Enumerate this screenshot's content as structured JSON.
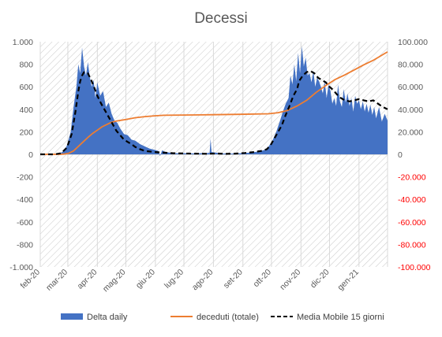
{
  "chart_data": {
    "type": "area",
    "title": "Decessi",
    "y_left": {
      "range": [
        -1000,
        1000
      ],
      "ticks": [
        "-1.000",
        "-800",
        "-600",
        "-400",
        "-200",
        "0",
        "200",
        "400",
        "600",
        "800",
        "1.000"
      ]
    },
    "y_right": {
      "range": [
        -100000,
        100000
      ],
      "ticks": [
        "-100.000",
        "-80.000",
        "-60.000",
        "-40.000",
        "-20.000",
        "0",
        "20.000",
        "40.000",
        "60.000",
        "80.000",
        "100.000"
      ],
      "color": "#ff0000"
    },
    "x_ticks": [
      "feb-20",
      "mar-20",
      "apr-20",
      "mag-20",
      "giu-20",
      "lug-20",
      "ago-20",
      "set-20",
      "ott-20",
      "nov-20",
      "dic-20",
      "gen-21"
    ],
    "x_range_days": [
      0,
      365
    ],
    "x_tick_days": [
      0,
      29,
      60,
      90,
      121,
      151,
      182,
      213,
      243,
      274,
      304,
      335
    ],
    "gridlines": "vertical",
    "legend_position": "bottom",
    "series": [
      {
        "name": "Delta daily",
        "kind": "area",
        "axis": "left",
        "color": "#4472c4",
        "points": [
          [
            0,
            0
          ],
          [
            10,
            0
          ],
          [
            20,
            5
          ],
          [
            25,
            30
          ],
          [
            28,
            80
          ],
          [
            32,
            200
          ],
          [
            35,
            420
          ],
          [
            38,
            600
          ],
          [
            40,
            800
          ],
          [
            42,
            720
          ],
          [
            44,
            950
          ],
          [
            46,
            780
          ],
          [
            48,
            700
          ],
          [
            50,
            820
          ],
          [
            52,
            690
          ],
          [
            54,
            600
          ],
          [
            56,
            660
          ],
          [
            58,
            500
          ],
          [
            60,
            640
          ],
          [
            63,
            520
          ],
          [
            66,
            560
          ],
          [
            69,
            420
          ],
          [
            72,
            460
          ],
          [
            75,
            360
          ],
          [
            78,
            300
          ],
          [
            81,
            280
          ],
          [
            84,
            230
          ],
          [
            88,
            180
          ],
          [
            92,
            170
          ],
          [
            96,
            130
          ],
          [
            100,
            120
          ],
          [
            105,
            90
          ],
          [
            110,
            70
          ],
          [
            115,
            50
          ],
          [
            120,
            40
          ],
          [
            124,
            30
          ],
          [
            126,
            -15
          ],
          [
            128,
            35
          ],
          [
            132,
            20
          ],
          [
            136,
            15
          ],
          [
            140,
            10
          ],
          [
            150,
            10
          ],
          [
            160,
            8
          ],
          [
            170,
            10
          ],
          [
            178,
            12
          ],
          [
            179,
            140
          ],
          [
            180,
            20
          ],
          [
            190,
            8
          ],
          [
            200,
            6
          ],
          [
            210,
            10
          ],
          [
            220,
            15
          ],
          [
            230,
            25
          ],
          [
            236,
            40
          ],
          [
            240,
            70
          ],
          [
            244,
            120
          ],
          [
            248,
            200
          ],
          [
            252,
            300
          ],
          [
            255,
            380
          ],
          [
            258,
            450
          ],
          [
            261,
            500
          ],
          [
            263,
            700
          ],
          [
            265,
            620
          ],
          [
            267,
            800
          ],
          [
            269,
            650
          ],
          [
            271,
            900
          ],
          [
            273,
            720
          ],
          [
            275,
            960
          ],
          [
            277,
            780
          ],
          [
            279,
            860
          ],
          [
            281,
            700
          ],
          [
            283,
            720
          ],
          [
            285,
            640
          ],
          [
            287,
            740
          ],
          [
            289,
            600
          ],
          [
            291,
            680
          ],
          [
            293,
            650
          ],
          [
            295,
            600
          ],
          [
            297,
            540
          ],
          [
            299,
            650
          ],
          [
            301,
            500
          ],
          [
            303,
            620
          ],
          [
            305,
            560
          ],
          [
            307,
            450
          ],
          [
            309,
            500
          ],
          [
            311,
            430
          ],
          [
            313,
            620
          ],
          [
            315,
            470
          ],
          [
            317,
            420
          ],
          [
            319,
            580
          ],
          [
            321,
            460
          ],
          [
            323,
            540
          ],
          [
            325,
            430
          ],
          [
            327,
            500
          ],
          [
            329,
            380
          ],
          [
            331,
            520
          ],
          [
            333,
            450
          ],
          [
            335,
            480
          ],
          [
            337,
            400
          ],
          [
            339,
            470
          ],
          [
            341,
            380
          ],
          [
            343,
            450
          ],
          [
            345,
            370
          ],
          [
            347,
            440
          ],
          [
            349,
            350
          ],
          [
            351,
            420
          ],
          [
            353,
            320
          ],
          [
            356,
            420
          ],
          [
            359,
            290
          ],
          [
            362,
            360
          ],
          [
            365,
            300
          ]
        ]
      },
      {
        "name": "deceduti (totale)",
        "kind": "line",
        "axis": "right",
        "color": "#ed7d31",
        "points": [
          [
            0,
            0
          ],
          [
            20,
            0
          ],
          [
            25,
            200
          ],
          [
            30,
            1000
          ],
          [
            35,
            3000
          ],
          [
            40,
            7000
          ],
          [
            45,
            11000
          ],
          [
            50,
            15000
          ],
          [
            55,
            18500
          ],
          [
            60,
            21500
          ],
          [
            65,
            24500
          ],
          [
            70,
            26500
          ],
          [
            75,
            28500
          ],
          [
            80,
            29500
          ],
          [
            90,
            31000
          ],
          [
            100,
            32500
          ],
          [
            110,
            33500
          ],
          [
            120,
            34200
          ],
          [
            130,
            34700
          ],
          [
            150,
            34900
          ],
          [
            180,
            35200
          ],
          [
            210,
            35500
          ],
          [
            240,
            36000
          ],
          [
            250,
            37000
          ],
          [
            260,
            39000
          ],
          [
            270,
            43000
          ],
          [
            280,
            48000
          ],
          [
            290,
            55000
          ],
          [
            300,
            61000
          ],
          [
            310,
            66500
          ],
          [
            320,
            70500
          ],
          [
            330,
            75000
          ],
          [
            340,
            79500
          ],
          [
            350,
            83500
          ],
          [
            360,
            88500
          ],
          [
            365,
            91000
          ]
        ]
      },
      {
        "name": "Media Mobile 15 giorni",
        "kind": "dashed-line",
        "axis": "left",
        "color": "#000000",
        "points": [
          [
            0,
            0
          ],
          [
            15,
            0
          ],
          [
            22,
            10
          ],
          [
            28,
            60
          ],
          [
            33,
            180
          ],
          [
            37,
            380
          ],
          [
            40,
            560
          ],
          [
            42,
            650
          ],
          [
            44,
            700
          ],
          [
            46,
            730
          ],
          [
            50,
            720
          ],
          [
            53,
            670
          ],
          [
            56,
            610
          ],
          [
            60,
            520
          ],
          [
            64,
            450
          ],
          [
            68,
            390
          ],
          [
            72,
            330
          ],
          [
            76,
            270
          ],
          [
            80,
            210
          ],
          [
            84,
            170
          ],
          [
            88,
            130
          ],
          [
            92,
            110
          ],
          [
            96,
            90
          ],
          [
            100,
            65
          ],
          [
            105,
            45
          ],
          [
            110,
            30
          ],
          [
            120,
            20
          ],
          [
            140,
            10
          ],
          [
            160,
            6
          ],
          [
            175,
            5
          ],
          [
            185,
            8
          ],
          [
            195,
            4
          ],
          [
            205,
            6
          ],
          [
            215,
            12
          ],
          [
            225,
            20
          ],
          [
            232,
            30
          ],
          [
            238,
            45
          ],
          [
            242,
            80
          ],
          [
            246,
            140
          ],
          [
            250,
            200
          ],
          [
            254,
            260
          ],
          [
            258,
            350
          ],
          [
            262,
            430
          ],
          [
            266,
            520
          ],
          [
            270,
            580
          ],
          [
            272,
            650
          ],
          [
            276,
            700
          ],
          [
            280,
            730
          ],
          [
            284,
            740
          ],
          [
            288,
            720
          ],
          [
            292,
            680
          ],
          [
            296,
            660
          ],
          [
            300,
            640
          ],
          [
            304,
            600
          ],
          [
            308,
            570
          ],
          [
            312,
            530
          ],
          [
            316,
            500
          ],
          [
            320,
            480
          ],
          [
            325,
            470
          ],
          [
            330,
            480
          ],
          [
            335,
            490
          ],
          [
            340,
            480
          ],
          [
            345,
            470
          ],
          [
            350,
            480
          ],
          [
            355,
            450
          ],
          [
            360,
            420
          ],
          [
            365,
            400
          ]
        ]
      }
    ]
  }
}
